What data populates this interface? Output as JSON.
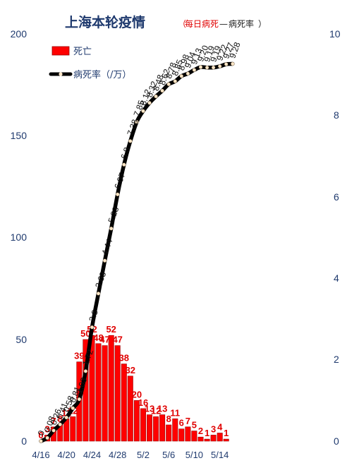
{
  "title": {
    "main": "上海本轮疫情",
    "paren_open": "（",
    "sub_red": "每日病死",
    "dash": "—",
    "sub_black": "病死率",
    "paren_close": "）"
  },
  "colors": {
    "bar": "#ff0000",
    "bar_edge": "#9a0000",
    "line": "#000000",
    "marker": "#fbe6c8",
    "axis_text": "#1f3a6e",
    "label_red": "#e00000"
  },
  "chart_data": {
    "type": "bar+line",
    "dates": [
      "4/16",
      "4/17",
      "4/18",
      "4/19",
      "4/20",
      "4/21",
      "4/22",
      "4/23",
      "4/24",
      "4/25",
      "4/26",
      "4/27",
      "4/28",
      "4/29",
      "4/30",
      "5/1",
      "5/2",
      "5/3",
      "5/4",
      "5/5",
      "5/6",
      "5/7",
      "5/8",
      "5/9",
      "5/10",
      "5/11",
      "5/12",
      "5/13",
      "5/14",
      "5/15",
      "5/16"
    ],
    "x_tick_labels": [
      "4/16",
      "4/20",
      "4/24",
      "4/28",
      "5/2",
      "5/6",
      "5/10",
      "5/14"
    ],
    "x_tick_indices": [
      0,
      4,
      8,
      12,
      16,
      20,
      24,
      28
    ],
    "series": [
      {
        "name": "死亡",
        "axis": "left",
        "type": "bar",
        "values": [
          0,
          3,
          7,
          8,
          11,
          12,
          39,
          50,
          52,
          48,
          47,
          52,
          47,
          38,
          32,
          20,
          16,
          13,
          12,
          13,
          8,
          11,
          6,
          7,
          5,
          2,
          1,
          3,
          4,
          1,
          null
        ],
        "labels": [
          "0",
          "3",
          "7",
          "8",
          "11",
          "12",
          "39",
          "50",
          "52",
          "48",
          "47",
          "52",
          "47",
          "38",
          "32",
          "20",
          "16",
          "13",
          "12",
          "13",
          "8",
          "11",
          "6",
          "7",
          "5",
          "2",
          "1",
          "3",
          "4",
          "1",
          ""
        ]
      },
      {
        "name": "病死率（/万）",
        "axis": "right",
        "type": "line",
        "values": [
          0,
          0.08,
          0.26,
          0.41,
          0.58,
          0.81,
          1.03,
          1.72,
          2.8,
          3.63,
          4.44,
          5.23,
          6.07,
          6.8,
          7.38,
          7.85,
          8.12,
          8.32,
          8.48,
          8.62,
          8.78,
          8.85,
          8.98,
          9.04,
          9.13,
          9.2,
          9.19,
          9.19,
          9.22,
          9.27,
          9.28
        ],
        "labels": [
          "0",
          "0.08",
          "0.26",
          "0.41",
          "0.58",
          "0.81",
          "1.03",
          "1.72",
          "2.8",
          "3.63",
          "4.44",
          "5.23",
          "6.07",
          "6.8",
          "7.38",
          "7.85",
          "8.12",
          "8.32",
          "8.48",
          "8.62",
          "8.78",
          "8.85",
          "8.98",
          "9.04",
          "9.13",
          "9.20",
          "9.19",
          "9.19",
          "9.22",
          "9.27",
          "9.28"
        ]
      }
    ],
    "y_left": {
      "min": 0,
      "max": 200,
      "ticks": [
        "0",
        "50",
        "100",
        "150",
        "200"
      ]
    },
    "y_right": {
      "min": 0,
      "max": 10,
      "ticks": [
        "0",
        "2",
        "4",
        "6",
        "8",
        "10"
      ]
    },
    "grid": false,
    "legend": {
      "placement": "top-left",
      "items": [
        {
          "label": "死亡",
          "kind": "bar"
        },
        {
          "label": "病死率（/万）",
          "kind": "line"
        }
      ]
    }
  }
}
